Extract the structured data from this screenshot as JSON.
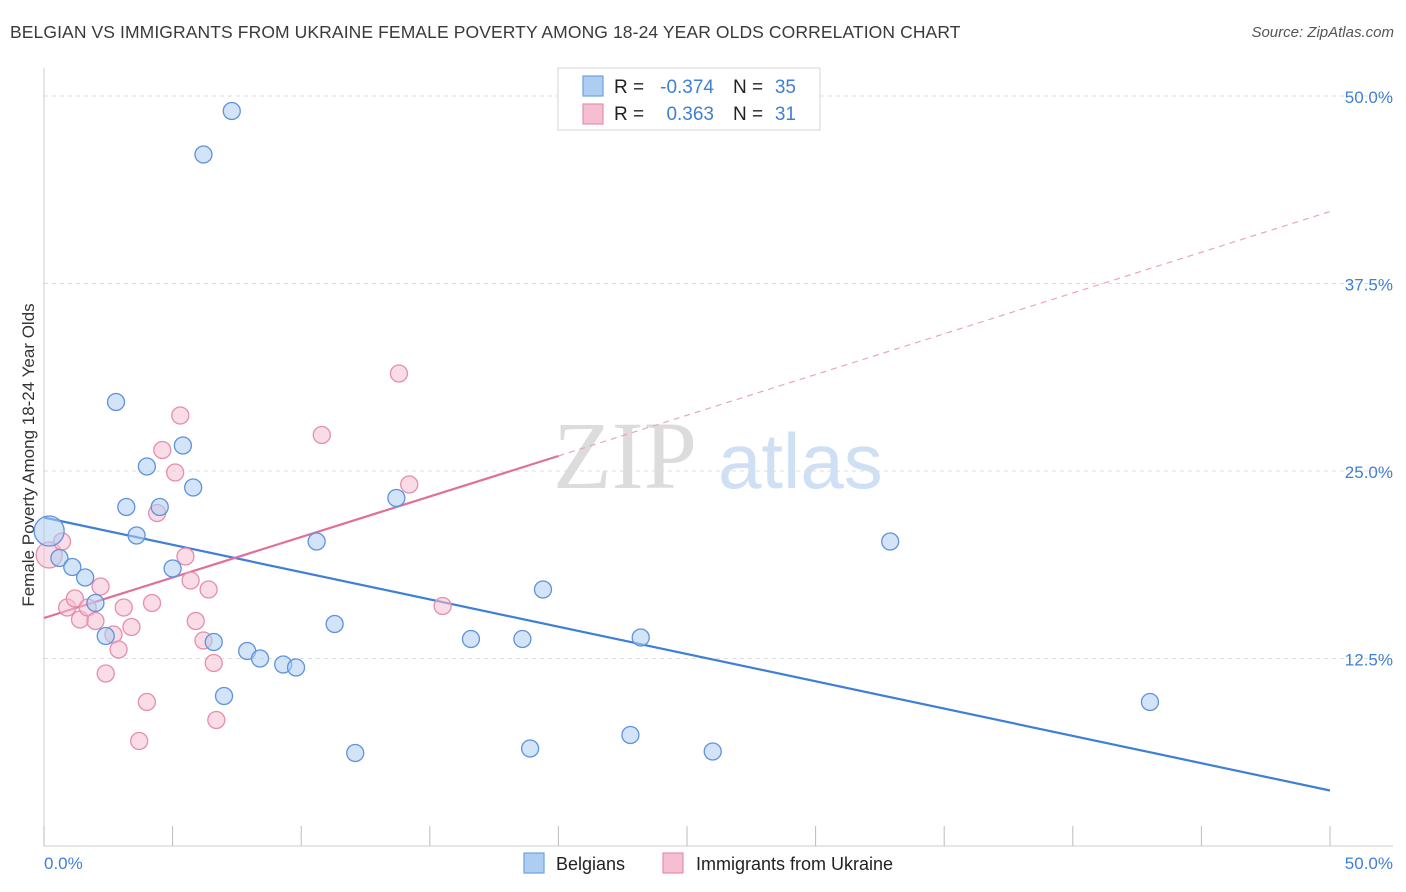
{
  "title": "BELGIAN VS IMMIGRANTS FROM UKRAINE FEMALE POVERTY AMONG 18-24 YEAR OLDS CORRELATION CHART",
  "source": "Source: ZipAtlas.com",
  "watermark": {
    "zip": "ZIP",
    "atlas": "atlas"
  },
  "legend": {
    "r_label": "R =",
    "n_label": "N =",
    "rows": [
      {
        "r": "-0.374",
        "n": "35"
      },
      {
        "r": "0.363",
        "n": "31"
      }
    ]
  },
  "colors": {
    "belgians": "#3f7fd6",
    "belgians_fill": "#aecdf3",
    "ukraine": "#e07099",
    "ukraine_fill": "#f6bfd1"
  },
  "chart_data": {
    "type": "scatter",
    "xlabel": "",
    "ylabel": "Female Poverty Among 18-24 Year Olds",
    "xlim": [
      0,
      50
    ],
    "ylim": [
      0,
      50
    ],
    "x_tick_labels": [
      "0.0%",
      "50.0%"
    ],
    "y_ticks": [
      12.5,
      25.0,
      37.5,
      50.0
    ],
    "y_tick_labels": [
      "12.5%",
      "25.0%",
      "37.5%",
      "50.0%"
    ],
    "series": [
      {
        "name": "Belgians",
        "r": -0.374,
        "n": 35,
        "trend": {
          "x": [
            0,
            50
          ],
          "y": [
            21.9,
            3.7
          ]
        },
        "points": [
          {
            "x": 0.2,
            "y": 21.0
          },
          {
            "x": 0.6,
            "y": 19.2
          },
          {
            "x": 1.1,
            "y": 18.6
          },
          {
            "x": 1.6,
            "y": 17.9
          },
          {
            "x": 2.0,
            "y": 16.2
          },
          {
            "x": 2.4,
            "y": 14.0
          },
          {
            "x": 2.8,
            "y": 29.6
          },
          {
            "x": 3.2,
            "y": 22.6
          },
          {
            "x": 3.6,
            "y": 20.7
          },
          {
            "x": 4.0,
            "y": 25.3
          },
          {
            "x": 4.5,
            "y": 22.6
          },
          {
            "x": 5.0,
            "y": 18.5
          },
          {
            "x": 5.4,
            "y": 26.7
          },
          {
            "x": 5.8,
            "y": 23.9
          },
          {
            "x": 6.2,
            "y": 46.1
          },
          {
            "x": 6.6,
            "y": 13.6
          },
          {
            "x": 7.0,
            "y": 10.0
          },
          {
            "x": 7.3,
            "y": 49.0
          },
          {
            "x": 7.9,
            "y": 13.0
          },
          {
            "x": 8.4,
            "y": 12.5
          },
          {
            "x": 9.3,
            "y": 12.1
          },
          {
            "x": 9.8,
            "y": 11.9
          },
          {
            "x": 10.6,
            "y": 20.3
          },
          {
            "x": 11.3,
            "y": 14.8
          },
          {
            "x": 12.1,
            "y": 6.2
          },
          {
            "x": 13.7,
            "y": 23.2
          },
          {
            "x": 16.6,
            "y": 13.8
          },
          {
            "x": 18.6,
            "y": 13.8
          },
          {
            "x": 18.9,
            "y": 6.5
          },
          {
            "x": 19.4,
            "y": 17.1
          },
          {
            "x": 22.8,
            "y": 7.4
          },
          {
            "x": 23.2,
            "y": 13.9
          },
          {
            "x": 26.0,
            "y": 6.3
          },
          {
            "x": 32.9,
            "y": 20.3
          },
          {
            "x": 43.0,
            "y": 9.6
          }
        ]
      },
      {
        "name": "Immigrants from Ukraine",
        "r": 0.363,
        "n": 31,
        "trend": {
          "x": [
            0,
            20
          ],
          "y": [
            15.2,
            26.0
          ]
        },
        "trend_dashed": {
          "x": [
            20,
            50
          ],
          "y": [
            26.0,
            42.3
          ]
        },
        "points": [
          {
            "x": 0.2,
            "y": 19.4
          },
          {
            "x": 0.7,
            "y": 20.3
          },
          {
            "x": 0.9,
            "y": 15.9
          },
          {
            "x": 1.2,
            "y": 16.5
          },
          {
            "x": 1.4,
            "y": 15.1
          },
          {
            "x": 1.7,
            "y": 15.9
          },
          {
            "x": 2.0,
            "y": 15.0
          },
          {
            "x": 2.2,
            "y": 17.3
          },
          {
            "x": 2.4,
            "y": 11.5
          },
          {
            "x": 2.7,
            "y": 14.1
          },
          {
            "x": 2.9,
            "y": 13.1
          },
          {
            "x": 3.1,
            "y": 15.9
          },
          {
            "x": 3.4,
            "y": 14.6
          },
          {
            "x": 3.7,
            "y": 7.0
          },
          {
            "x": 4.0,
            "y": 9.6
          },
          {
            "x": 4.2,
            "y": 16.2
          },
          {
            "x": 4.4,
            "y": 22.2
          },
          {
            "x": 4.6,
            "y": 26.4
          },
          {
            "x": 5.1,
            "y": 24.9
          },
          {
            "x": 5.3,
            "y": 28.7
          },
          {
            "x": 5.5,
            "y": 19.3
          },
          {
            "x": 5.7,
            "y": 17.7
          },
          {
            "x": 5.9,
            "y": 15.0
          },
          {
            "x": 6.2,
            "y": 13.7
          },
          {
            "x": 6.4,
            "y": 17.1
          },
          {
            "x": 6.6,
            "y": 12.2
          },
          {
            "x": 6.7,
            "y": 8.4
          },
          {
            "x": 10.8,
            "y": 27.4
          },
          {
            "x": 13.8,
            "y": 31.5
          },
          {
            "x": 14.2,
            "y": 24.1
          },
          {
            "x": 15.5,
            "y": 16.0
          }
        ]
      }
    ]
  }
}
